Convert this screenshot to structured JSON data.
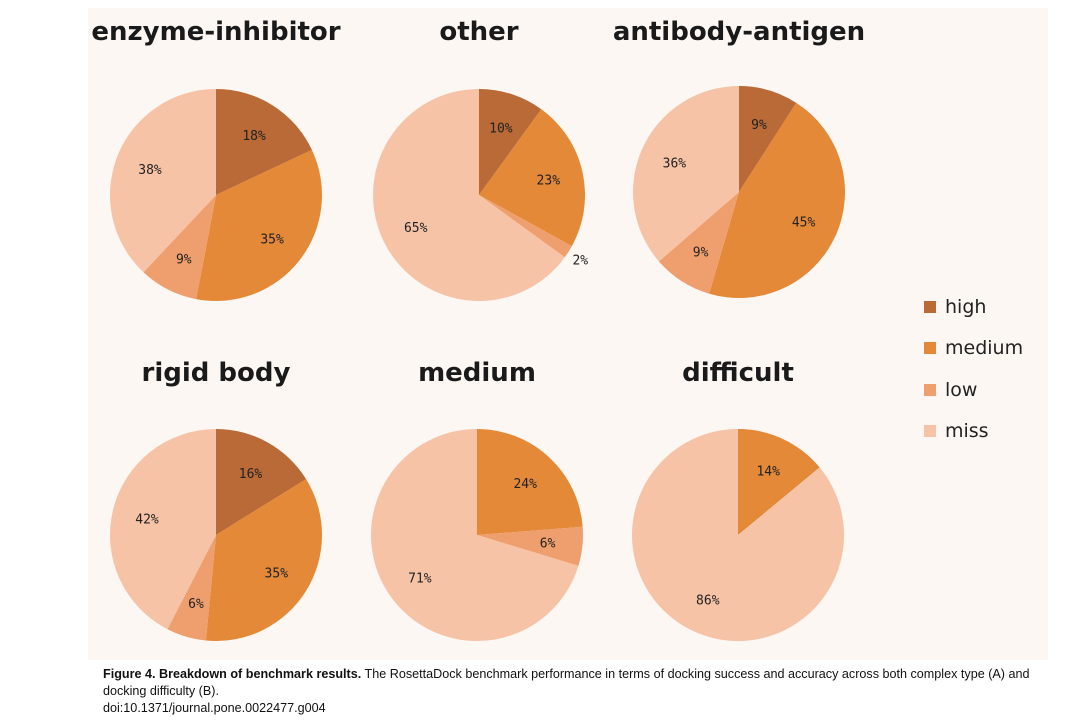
{
  "chart_data": [
    {
      "type": "pie",
      "title": "enzyme-inhibitor",
      "slices": [
        {
          "category": "high",
          "label": "18%",
          "value": 18
        },
        {
          "category": "medium",
          "label": "35%",
          "value": 35
        },
        {
          "category": "low",
          "label": "9%",
          "value": 9
        },
        {
          "category": "miss",
          "label": "38%",
          "value": 38
        }
      ]
    },
    {
      "type": "pie",
      "title": "other",
      "slices": [
        {
          "category": "high",
          "label": "10%",
          "value": 10
        },
        {
          "category": "medium",
          "label": "23%",
          "value": 23
        },
        {
          "category": "low",
          "label": "2%",
          "value": 2
        },
        {
          "category": "miss",
          "label": "65%",
          "value": 65
        }
      ]
    },
    {
      "type": "pie",
      "title": "antibody-antigen",
      "slices": [
        {
          "category": "high",
          "label": "9%",
          "value": 9
        },
        {
          "category": "medium",
          "label": "45%",
          "value": 45
        },
        {
          "category": "low",
          "label": "9%",
          "value": 9
        },
        {
          "category": "miss",
          "label": "36%",
          "value": 36
        }
      ]
    },
    {
      "type": "pie",
      "title": "rigid body",
      "slices": [
        {
          "category": "high",
          "label": "16%",
          "value": 16
        },
        {
          "category": "medium",
          "label": "35%",
          "value": 35
        },
        {
          "category": "low",
          "label": "6%",
          "value": 6
        },
        {
          "category": "miss",
          "label": "42%",
          "value": 42
        }
      ]
    },
    {
      "type": "pie",
      "title": "medium",
      "slices": [
        {
          "category": "medium",
          "label": "24%",
          "value": 24
        },
        {
          "category": "low",
          "label": "6%",
          "value": 6
        },
        {
          "category": "miss",
          "label": "71%",
          "value": 71
        }
      ]
    },
    {
      "type": "pie",
      "title": "difficult",
      "slices": [
        {
          "category": "medium",
          "label": "14%",
          "value": 14
        },
        {
          "category": "miss",
          "label": "86%",
          "value": 86
        }
      ]
    }
  ],
  "legend": {
    "position": "right",
    "items": [
      {
        "category": "high",
        "label": "high",
        "color": "#b96a37"
      },
      {
        "category": "medium",
        "label": "medium",
        "color": "#e38938"
      },
      {
        "category": "low",
        "label": "low",
        "color": "#ee9f6d"
      },
      {
        "category": "miss",
        "label": "miss",
        "color": "#f6c3a7"
      }
    ]
  },
  "caption": {
    "title": "Figure 4. Breakdown of benchmark results.",
    "text": " The RosettaDock benchmark performance in terms of docking success and accuracy across both complex type (A) and docking difficulty (B).",
    "doi": "doi:10.1371/journal.pone.0022477.g004"
  }
}
